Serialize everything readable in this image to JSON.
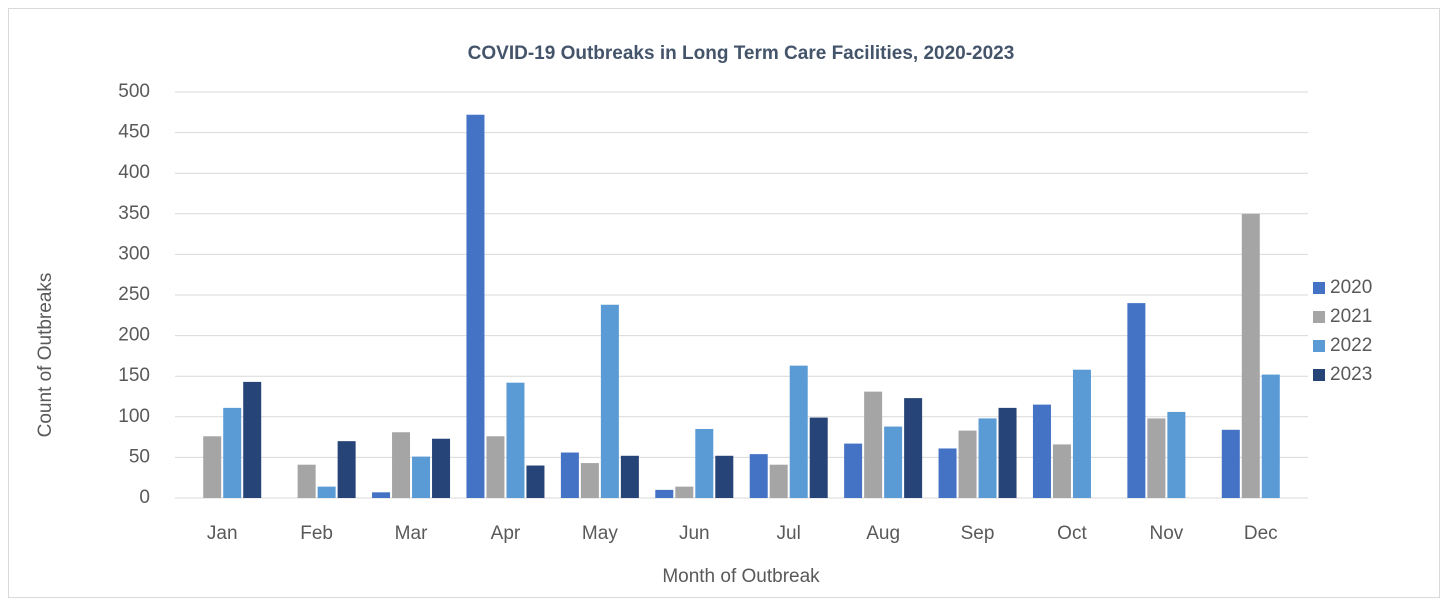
{
  "chart_data": {
    "type": "bar",
    "title": "COVID-19 Outbreaks in Long Term Care Facilities, 2020-2023",
    "x_label": "Month of Outbreak",
    "y_label": "Count of Outbreaks",
    "categories": [
      "Jan",
      "Feb",
      "Mar",
      "Apr",
      "May",
      "Jun",
      "Jul",
      "Aug",
      "Sep",
      "Oct",
      "Nov",
      "Dec"
    ],
    "series": [
      {
        "name": "2020",
        "color": "#4472c4",
        "values": [
          null,
          null,
          7,
          472,
          56,
          10,
          54,
          67,
          61,
          115,
          240,
          84
        ]
      },
      {
        "name": "2021",
        "color": "#a5a5a5",
        "values": [
          76,
          41,
          81,
          76,
          43,
          14,
          41,
          131,
          83,
          66,
          98,
          350
        ]
      },
      {
        "name": "2022",
        "color": "#5b9bd5",
        "values": [
          111,
          14,
          51,
          142,
          238,
          85,
          163,
          88,
          98,
          158,
          106,
          152
        ]
      },
      {
        "name": "2023",
        "color": "#264478",
        "values": [
          143,
          70,
          73,
          40,
          52,
          52,
          99,
          123,
          111,
          null,
          null,
          null
        ]
      }
    ],
    "ylim": [
      0,
      500
    ],
    "yticks": [
      0,
      50,
      100,
      150,
      200,
      250,
      300,
      350,
      400,
      450,
      500
    ],
    "grid": true,
    "legend": "right"
  }
}
